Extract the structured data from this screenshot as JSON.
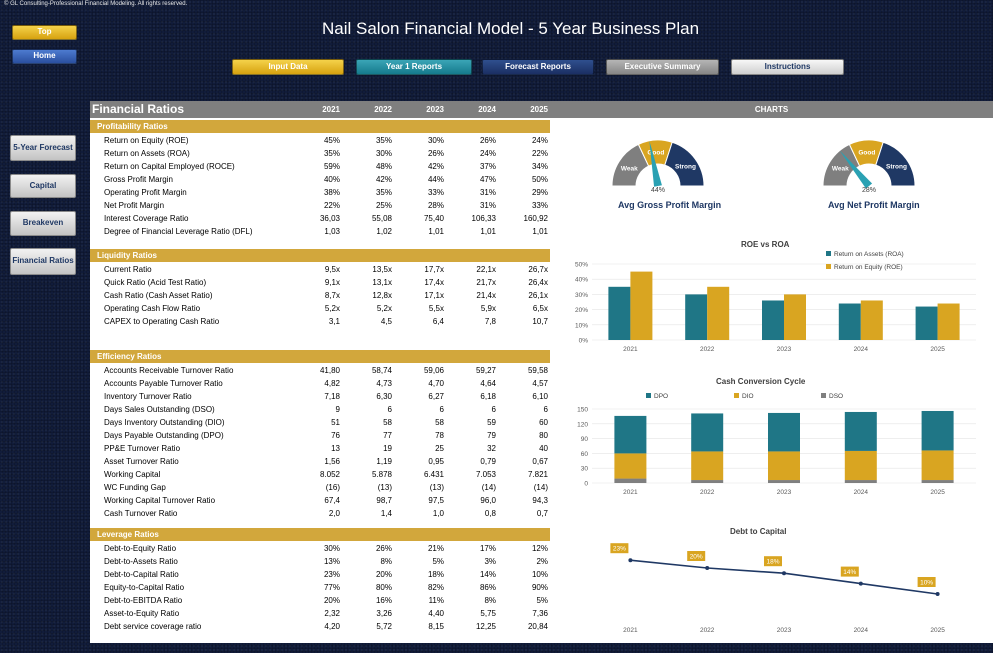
{
  "copyright": "© GL Consulting-Professional Financial Modeling. All rights reserved.",
  "title": "Nail Salon Financial Model - 5 Year Business Plan",
  "nav": {
    "top": "Top",
    "home": "Home",
    "input_data": "Input Data",
    "year1_reports": "Year 1 Reports",
    "forecast_reports": "Forecast Reports",
    "executive_summary": "Executive Summary",
    "instructions": "Instructions"
  },
  "side": {
    "five_year_forecast": "5-Year Forecast",
    "capital": "Capital",
    "breakeven": "Breakeven",
    "financial_ratios": "Financial Ratios"
  },
  "table": {
    "title": "Financial Ratios",
    "years": [
      "2021",
      "2022",
      "2023",
      "2024",
      "2025"
    ],
    "sections": [
      {
        "name": "Profitability Ratios",
        "rows": [
          {
            "label": "Return on Equity (ROE)",
            "values": [
              "45%",
              "35%",
              "30%",
              "26%",
              "24%"
            ]
          },
          {
            "label": "Return on Assets (ROA)",
            "values": [
              "35%",
              "30%",
              "26%",
              "24%",
              "22%"
            ]
          },
          {
            "label": "Return on Capital Employed (ROCE)",
            "values": [
              "59%",
              "48%",
              "42%",
              "37%",
              "34%"
            ]
          },
          {
            "label": "Gross Profit Margin",
            "values": [
              "40%",
              "42%",
              "44%",
              "47%",
              "50%"
            ]
          },
          {
            "label": "Operating Profit Margin",
            "values": [
              "38%",
              "35%",
              "33%",
              "31%",
              "29%"
            ]
          },
          {
            "label": "Net Profit Margin",
            "values": [
              "22%",
              "25%",
              "28%",
              "31%",
              "33%"
            ]
          },
          {
            "label": "Interest Coverage Ratio",
            "values": [
              "36,03",
              "55,08",
              "75,40",
              "106,33",
              "160,92"
            ]
          },
          {
            "label": "Degree of Financial Leverage Ratio (DFL)",
            "values": [
              "1,03",
              "1,02",
              "1,01",
              "1,01",
              "1,01"
            ]
          }
        ]
      },
      {
        "name": "Liquidity Ratios",
        "rows": [
          {
            "label": "Current Ratio",
            "values": [
              "9,5x",
              "13,5x",
              "17,7x",
              "22,1x",
              "26,7x"
            ]
          },
          {
            "label": "Quick Ratio (Acid Test Ratio)",
            "values": [
              "9,1x",
              "13,1x",
              "17,4x",
              "21,7x",
              "26,4x"
            ]
          },
          {
            "label": "Cash Ratio (Cash Asset Ratio)",
            "values": [
              "8,7x",
              "12,8x",
              "17,1x",
              "21,4x",
              "26,1x"
            ]
          },
          {
            "label": "Operating Cash Flow Ratio",
            "values": [
              "5,2x",
              "5,2x",
              "5,5x",
              "5,9x",
              "6,5x"
            ]
          },
          {
            "label": "CAPEX to Operating Cash Ratio",
            "values": [
              "3,1",
              "4,5",
              "6,4",
              "7,8",
              "10,7"
            ]
          }
        ]
      },
      {
        "name": "Efficiency Ratios",
        "rows": [
          {
            "label": "Accounts Receivable Turnover Ratio",
            "values": [
              "41,80",
              "58,74",
              "59,06",
              "59,27",
              "59,58"
            ]
          },
          {
            "label": "Accounts Payable Turnover Ratio",
            "values": [
              "4,82",
              "4,73",
              "4,70",
              "4,64",
              "4,57"
            ]
          },
          {
            "label": "Inventory Turnover Ratio",
            "values": [
              "7,18",
              "6,30",
              "6,27",
              "6,18",
              "6,10"
            ]
          },
          {
            "label": "Days Sales Outstanding (DSO)",
            "values": [
              "9",
              "6",
              "6",
              "6",
              "6"
            ]
          },
          {
            "label": "Days Inventory Outstanding (DIO)",
            "values": [
              "51",
              "58",
              "58",
              "59",
              "60"
            ]
          },
          {
            "label": "Days Payable Outstanding (DPO)",
            "values": [
              "76",
              "77",
              "78",
              "79",
              "80"
            ]
          },
          {
            "label": "PP&E Turnover Ratio",
            "values": [
              "13",
              "19",
              "25",
              "32",
              "40"
            ]
          },
          {
            "label": "Asset Turnover Ratio",
            "values": [
              "1,56",
              "1,19",
              "0,95",
              "0,79",
              "0,67"
            ]
          },
          {
            "label": "Working Capital",
            "values": [
              "8.052",
              "5.878",
              "6.431",
              "7.053",
              "7.821"
            ]
          },
          {
            "label": "WC Funding Gap",
            "values": [
              "(16)",
              "(13)",
              "(13)",
              "(14)",
              "(14)"
            ]
          },
          {
            "label": "Working Capital Turnover Ratio",
            "values": [
              "67,4",
              "98,7",
              "97,5",
              "96,0",
              "94,3"
            ]
          },
          {
            "label": "Cash Turnover Ratio",
            "values": [
              "2,0",
              "1,4",
              "1,0",
              "0,8",
              "0,7"
            ]
          }
        ]
      },
      {
        "name": "Leverage Ratios",
        "rows": [
          {
            "label": "Debt-to-Equity Ratio",
            "values": [
              "30%",
              "26%",
              "21%",
              "17%",
              "12%"
            ]
          },
          {
            "label": "Debt-to-Assets Ratio",
            "values": [
              "13%",
              "8%",
              "5%",
              "3%",
              "2%"
            ]
          },
          {
            "label": "Debt-to-Capital Ratio",
            "values": [
              "23%",
              "20%",
              "18%",
              "14%",
              "10%"
            ]
          },
          {
            "label": "Equity-to-Capital Ratio",
            "values": [
              "77%",
              "80%",
              "82%",
              "86%",
              "90%"
            ]
          },
          {
            "label": "Debt-to-EBITDA Ratio",
            "values": [
              "20%",
              "16%",
              "11%",
              "8%",
              "5%"
            ]
          },
          {
            "label": "Asset-to-Equity Ratio",
            "values": [
              "2,32",
              "3,26",
              "4,40",
              "5,75",
              "7,36"
            ]
          },
          {
            "label": "Debt service coverage ratio",
            "values": [
              "4,20",
              "5,72",
              "8,15",
              "12,25",
              "20,84"
            ]
          }
        ]
      }
    ]
  },
  "charts_header": "CHARTS",
  "gauges": [
    {
      "title": "Avg Gross Profit Margin",
      "value_label": "44%",
      "value": 0.44,
      "zones": [
        "Weak",
        "Good",
        "Strong"
      ]
    },
    {
      "title": "Avg Net Profit Margin",
      "value_label": "28%",
      "value": 0.28,
      "zones": [
        "Weak",
        "Good",
        "Strong"
      ]
    }
  ],
  "colors": {
    "teal": "#1f7686",
    "gold": "#d9a521",
    "navy": "#1f3864",
    "gray": "#7f7f7f"
  },
  "chart_data": [
    {
      "type": "bar",
      "title": "ROE vs ROA",
      "categories": [
        "2021",
        "2022",
        "2023",
        "2024",
        "2025"
      ],
      "series": [
        {
          "name": "Return on Assets (ROA)",
          "values": [
            0.35,
            0.3,
            0.26,
            0.24,
            0.22
          ],
          "color": "#1f7686"
        },
        {
          "name": "Return on Equity (ROE)",
          "values": [
            0.45,
            0.35,
            0.3,
            0.26,
            0.24
          ],
          "color": "#d9a521"
        }
      ],
      "yticks": [
        "50%",
        "40%",
        "30%",
        "20%",
        "10%",
        "0%"
      ],
      "ylim": [
        0,
        0.5
      ],
      "legend": "top-right"
    },
    {
      "type": "bar",
      "title": "Cash Conversion Cycle",
      "stacked": true,
      "categories": [
        "2021",
        "2022",
        "2023",
        "2024",
        "2025"
      ],
      "series": [
        {
          "name": "DSO",
          "values": [
            9,
            6,
            6,
            6,
            6
          ],
          "color": "#7f7f7f"
        },
        {
          "name": "DIO",
          "values": [
            51,
            58,
            58,
            59,
            60
          ],
          "color": "#d9a521"
        },
        {
          "name": "DPO",
          "values": [
            76,
            77,
            78,
            79,
            80
          ],
          "color": "#1f7686"
        }
      ],
      "legend_order": [
        "DPO",
        "DIO",
        "DSO"
      ],
      "yticks": [
        "150",
        "120",
        "90",
        "60",
        "30",
        "0"
      ],
      "ylim": [
        0,
        150
      ],
      "legend": "top"
    },
    {
      "type": "line",
      "title": "Debt to Capital",
      "categories": [
        "2021",
        "2022",
        "2023",
        "2024",
        "2025"
      ],
      "values": [
        0.23,
        0.2,
        0.18,
        0.14,
        0.1
      ],
      "labels": [
        "23%",
        "20%",
        "18%",
        "14%",
        "10%"
      ],
      "color": "#1f3864"
    }
  ]
}
